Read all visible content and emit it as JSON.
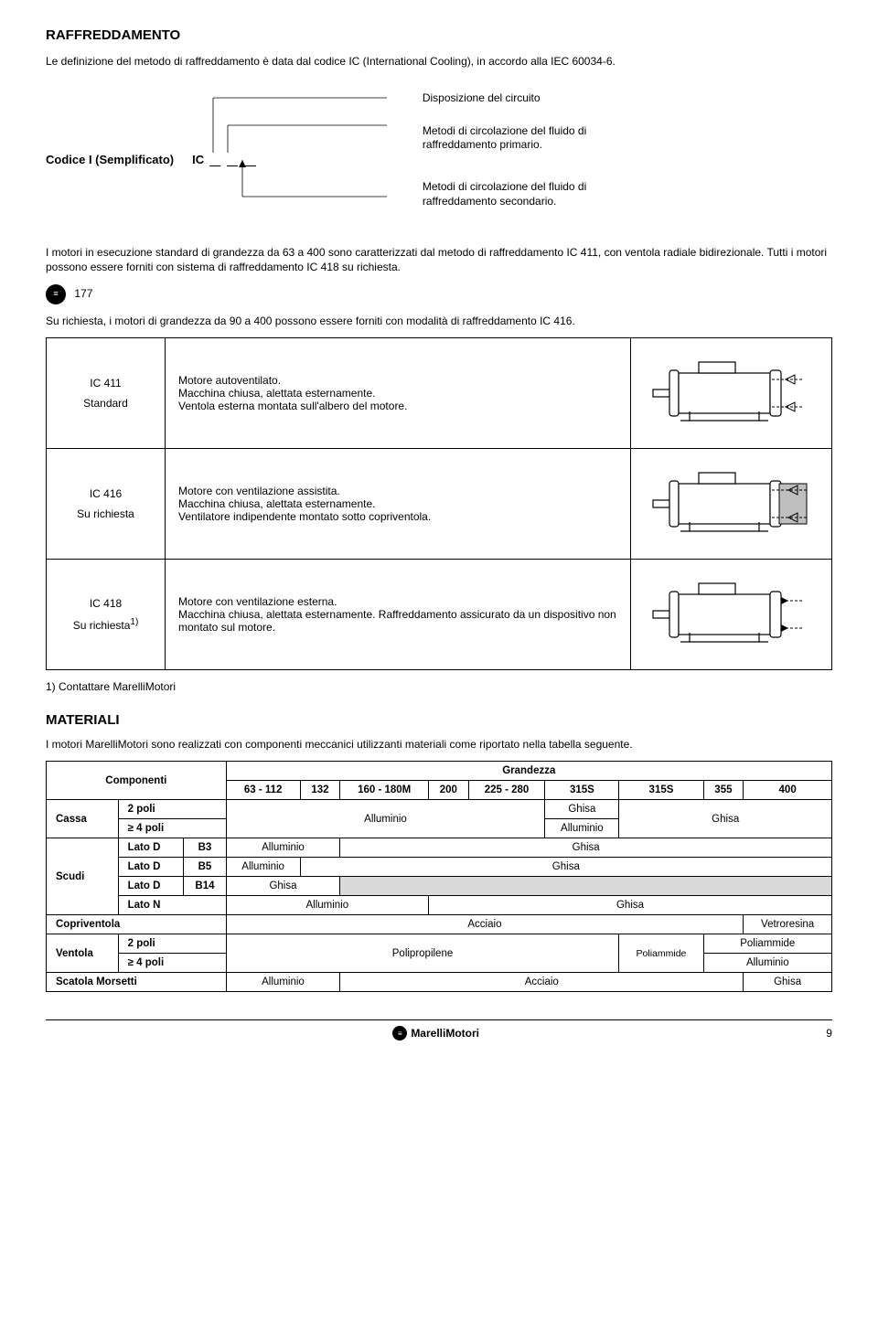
{
  "title": "RAFFREDDAMENTO",
  "intro": "Le definizione del metodo di raffreddamento è data dal codice IC (International Cooling), in accordo alla IEC 60034-6.",
  "codice_label": "Codice I (Semplificato)",
  "ic_prefix": "IC",
  "ic_desc": {
    "d1": "Disposizione del circuito",
    "d2a": "Metodi di circolazione del fluido di",
    "d2b": "raffreddamento primario.",
    "d3a": "Metodi di circolazione del fluido di",
    "d3b": "raffreddamento secondario."
  },
  "para1": "I motori in esecuzione standard di grandezza da 63 a 400 sono caratterizzati dal metodo di raffreddamento IC 411, con ventola radiale bidirezionale. Tutti i motori possono essere forniti con sistema di raffreddamento IC 418 su richiesta.",
  "ref177": "177",
  "para2": "Su richiesta, i motori di grandezza da 90 a 400 possono essere forniti con modalità di raffreddamento IC 416.",
  "rows": [
    {
      "code": "IC 411",
      "sub": "Standard",
      "desc": "Motore autoventilato.\nMacchina chiusa, alettata esternamente.\nVentola esterna montata sull'albero del motore.",
      "motor": "ic411"
    },
    {
      "code": "IC 416",
      "sub": "Su richiesta",
      "desc": "Motore con ventilazione assistita.\nMacchina chiusa, alettata esternamente.\nVentilatore indipendente montato sotto copriventola.",
      "motor": "ic416"
    },
    {
      "code": "IC 418",
      "sub": "Su richiesta",
      "sup": "1)",
      "desc": "Motore con ventilazione esterna.\nMacchina chiusa, alettata esternamente. Raffreddamento assicurato da un dispositivo non montato sul motore.",
      "motor": "ic418"
    }
  ],
  "footnote": "1) Contattare MarelliMotori",
  "materiali_title": "MATERIALI",
  "materiali_intro": "I motori MarelliMotori sono realizzati con componenti meccanici utilizzanti materiali come riportato nella tabella seguente.",
  "mat": {
    "componenti": "Componenti",
    "grandezza": "Grandezza",
    "sizes": [
      "63 - 112",
      "132",
      "160 - 180M",
      "200",
      "225 - 280",
      "315S",
      "315S",
      "355",
      "400"
    ],
    "labels": {
      "cassa": "Cassa",
      "poli2": "2 poli",
      "poli4": "≥ 4 poli",
      "scudi": "Scudi",
      "latoD": "Lato D",
      "latoN": "Lato N",
      "b3": "B3",
      "b5": "B5",
      "b14": "B14",
      "copriventola": "Copriventola",
      "ventola": "Ventola",
      "scatola": "Scatola Morsetti"
    },
    "materials": {
      "alluminio": "Alluminio",
      "ghisa": "Ghisa",
      "acciaio": "Acciaio",
      "vetroresina": "Vetroresina",
      "polipropilene": "Polipropilene",
      "poliammide": "Poliammide"
    }
  },
  "footer_brand": "MarelliMotori",
  "page_number": "9",
  "colors": {
    "text": "#000000",
    "bg": "#ffffff",
    "gray": "#d9d9d9",
    "motor_gray": "#bfbfbf"
  }
}
